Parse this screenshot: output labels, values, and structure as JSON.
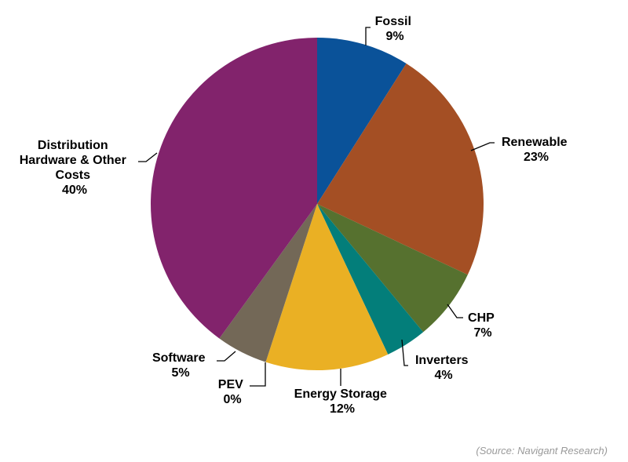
{
  "chart_data": {
    "type": "pie",
    "title": "",
    "start_angle_deg": 0,
    "direction": "clockwise",
    "slices": [
      {
        "label": "Fossil",
        "value_label": "9%",
        "value": 9,
        "color": "#0A5299"
      },
      {
        "label": "Renewable",
        "value_label": "23%",
        "value": 23,
        "color": "#A44F24"
      },
      {
        "label": "CHP",
        "value_label": "7%",
        "value": 7,
        "color": "#56712F"
      },
      {
        "label": "Inverters",
        "value_label": "4%",
        "value": 4,
        "color": "#037E7A"
      },
      {
        "label": "Energy Storage",
        "value_label": "12%",
        "value": 12,
        "color": "#EAB024"
      },
      {
        "label": "PEV",
        "value_label": "0%",
        "value": 0,
        "color": "#EAB024"
      },
      {
        "label": "Software",
        "value_label": "5%",
        "value": 5,
        "color": "#736857"
      },
      {
        "label": "Distribution Hardware & Other Costs",
        "value_label": "40%",
        "value": 40,
        "color": "#82236C"
      }
    ]
  },
  "source_note": "(Source: Navigant Research)"
}
